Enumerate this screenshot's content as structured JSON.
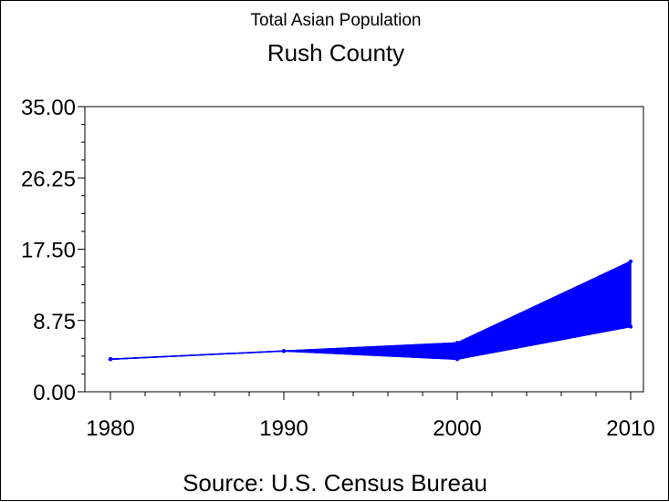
{
  "chart_data": {
    "type": "area",
    "title": "Total Asian Population",
    "subtitle": "Rush County",
    "footnote": "Source: U.S. Census Bureau",
    "xlabel": "",
    "ylabel": "",
    "x": [
      1980,
      1990,
      2000,
      2010
    ],
    "x_tick_labels": [
      "1980",
      "1990",
      "2000",
      "2010"
    ],
    "y_tick_labels": [
      "0.00",
      "8.75",
      "17.50",
      "26.25",
      "35.00"
    ],
    "y_ticks": [
      0,
      8.75,
      17.5,
      26.25,
      35
    ],
    "ylim": [
      0,
      35
    ],
    "xlim": [
      1980,
      2010
    ],
    "series": [
      {
        "values": [
          4,
          5,
          6,
          16
        ]
      },
      {
        "values": [
          4,
          5,
          4,
          8
        ]
      }
    ],
    "fill_between_series": true,
    "color": "#0000ff",
    "grid": false
  }
}
